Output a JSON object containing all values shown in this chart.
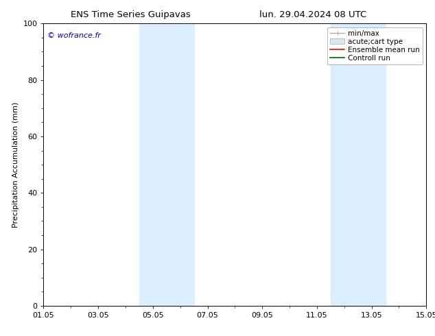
{
  "title_left": "ENS Time Series Guipavas",
  "title_right": "lun. 29.04.2024 08 UTC",
  "ylabel": "Precipitation Accumulation (mm)",
  "xlim": [
    0.0,
    14.0
  ],
  "ylim": [
    0,
    100
  ],
  "yticks": [
    0,
    20,
    40,
    60,
    80,
    100
  ],
  "xtick_labels": [
    "01.05",
    "03.05",
    "05.05",
    "07.05",
    "09.05",
    "11.05",
    "13.05",
    "15.05"
  ],
  "xtick_positions": [
    0.0,
    2.0,
    4.0,
    6.0,
    8.0,
    10.0,
    12.0,
    14.0
  ],
  "shaded_bands": [
    {
      "x_start": 3.5,
      "x_end": 5.5,
      "color": "#dbeeff",
      "alpha": 1.0
    },
    {
      "x_start": 10.5,
      "x_end": 12.5,
      "color": "#dbeeff",
      "alpha": 1.0
    }
  ],
  "legend_entries": [
    {
      "label": "min/max",
      "color": "#aaaaaa",
      "lw": 1.0,
      "style": "minmax"
    },
    {
      "label": "acute;cart type",
      "color": "#d8e8f0",
      "style": "box"
    },
    {
      "label": "Ensemble mean run",
      "color": "#ff0000",
      "lw": 1.2,
      "style": "line"
    },
    {
      "label": "Controll run",
      "color": "#006400",
      "lw": 1.2,
      "style": "line"
    }
  ],
  "watermark_text": "© wofrance.fr",
  "watermark_color": "#0000bb",
  "background_color": "#ffffff",
  "plot_background": "#ffffff",
  "font_size": 8,
  "title_font_size": 9.5
}
